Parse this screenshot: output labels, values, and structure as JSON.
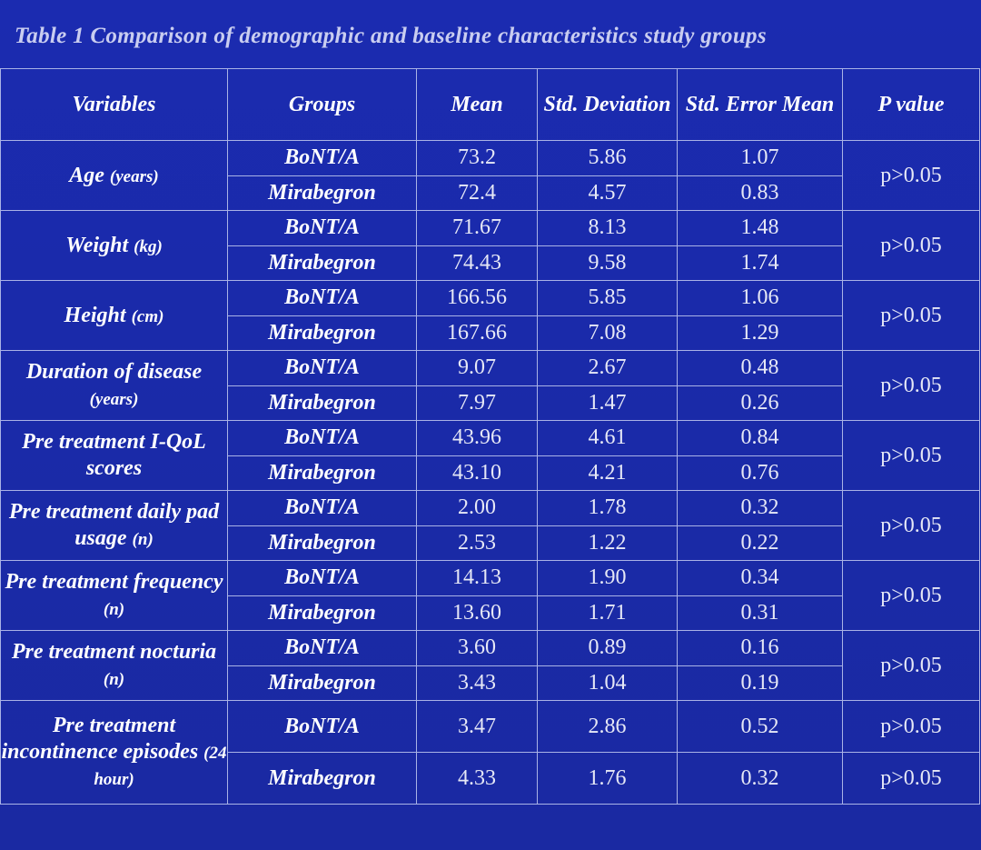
{
  "caption": "Table 1  Comparison of demographic and baseline characteristics study groups",
  "headers": {
    "variables": "Variables",
    "groups": "Groups",
    "mean": "Mean",
    "std_dev": "Std. Deviation",
    "std_err": "Std. Error Mean",
    "p_value": "P value"
  },
  "rows": [
    {
      "variable": "Age",
      "unit": "(years)",
      "p": "p>0.05",
      "groups": [
        {
          "name": "BoNT/A",
          "mean": "73.2",
          "sd": "5.86",
          "se": "1.07"
        },
        {
          "name": "Mirabegron",
          "mean": "72.4",
          "sd": "4.57",
          "se": "0.83"
        }
      ]
    },
    {
      "variable": "Weight",
      "unit": "(kg)",
      "p": "p>0.05",
      "groups": [
        {
          "name": "BoNT/A",
          "mean": "71.67",
          "sd": "8.13",
          "se": "1.48"
        },
        {
          "name": "Mirabegron",
          "mean": "74.43",
          "sd": "9.58",
          "se": "1.74"
        }
      ]
    },
    {
      "variable": "Height",
      "unit": "(cm)",
      "p": "p>0.05",
      "groups": [
        {
          "name": "BoNT/A",
          "mean": "166.56",
          "sd": "5.85",
          "se": "1.06"
        },
        {
          "name": "Mirabegron",
          "mean": "167.66",
          "sd": "7.08",
          "se": "1.29"
        }
      ]
    },
    {
      "variable": "Duration of disease",
      "unit": "(years)",
      "p": "p>0.05",
      "groups": [
        {
          "name": "BoNT/A",
          "mean": "9.07",
          "sd": "2.67",
          "se": "0.48"
        },
        {
          "name": "Mirabegron",
          "mean": "7.97",
          "sd": "1.47",
          "se": "0.26"
        }
      ]
    },
    {
      "variable": "Pre treatment I-QoL scores",
      "unit": "",
      "p": "p>0.05",
      "groups": [
        {
          "name": "BoNT/A",
          "mean": "43.96",
          "sd": "4.61",
          "se": "0.84"
        },
        {
          "name": "Mirabegron",
          "mean": "43.10",
          "sd": "4.21",
          "se": "0.76"
        }
      ]
    },
    {
      "variable": "Pre treatment daily pad usage",
      "unit": "(n)",
      "p": "p>0.05",
      "groups": [
        {
          "name": "BoNT/A",
          "mean": "2.00",
          "sd": "1.78",
          "se": "0.32"
        },
        {
          "name": "Mirabegron",
          "mean": "2.53",
          "sd": "1.22",
          "se": "0.22"
        }
      ]
    },
    {
      "variable": "Pre treatment frequency",
      "unit": "(n)",
      "p": "p>0.05",
      "groups": [
        {
          "name": "BoNT/A",
          "mean": "14.13",
          "sd": "1.90",
          "se": "0.34"
        },
        {
          "name": "Mirabegron",
          "mean": "13.60",
          "sd": "1.71",
          "se": "0.31"
        }
      ]
    },
    {
      "variable": "Pre treatment nocturia",
      "unit": "(n)",
      "p": "p>0.05",
      "groups": [
        {
          "name": "BoNT/A",
          "mean": "3.60",
          "sd": "0.89",
          "se": "0.16"
        },
        {
          "name": "Mirabegron",
          "mean": "3.43",
          "sd": "1.04",
          "se": "0.19"
        }
      ]
    }
  ],
  "last": {
    "variable": "Pre treatment incontinence episodes",
    "unit": "(24 hour)",
    "groups": [
      {
        "name": "BoNT/A",
        "mean": "3.47",
        "sd": "2.86",
        "se": "0.52",
        "p": "p>0.05"
      },
      {
        "name": "Mirabegron",
        "mean": "4.33",
        "sd": "1.76",
        "se": "0.32",
        "p": "p>0.05"
      }
    ]
  }
}
